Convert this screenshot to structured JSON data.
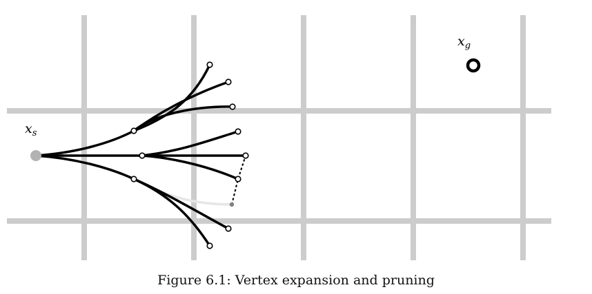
{
  "caption": "Figure 6.1: Vertex expansion and pruning",
  "labels": {
    "start_label_main": "x",
    "start_label_sub": "s",
    "goal_label_main": "x",
    "goal_label_sub": "g"
  },
  "colors": {
    "grid": "#cccccc",
    "edge": "#000000",
    "pruned_edge": "#e6e6e6",
    "start_vertex": "#b3b3b3",
    "pruned_vertex": "#808080",
    "goal_ring": "#000000",
    "vertex_fill": "#ffffff"
  }
}
